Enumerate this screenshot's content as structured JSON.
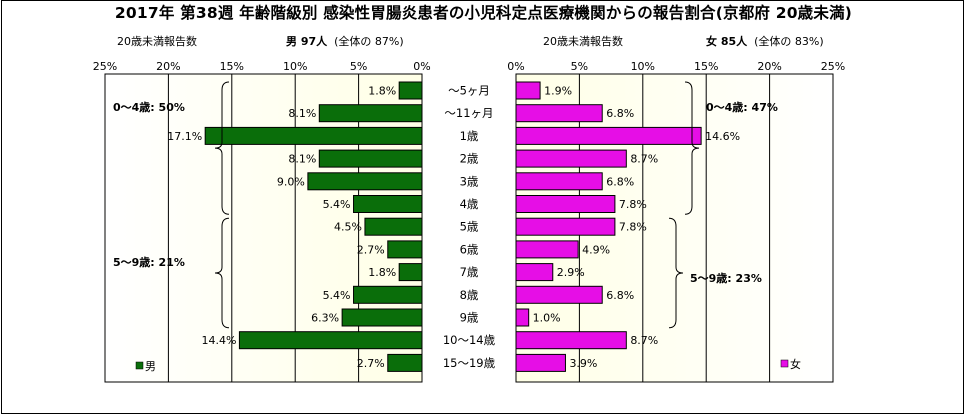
{
  "title": "2017年 第38週 年齢階級別 感染性胃腸炎患者の小児科定点医療機関からの報告割合(京都府 20歳未満)",
  "header": {
    "left_caption": "20歳未満報告数",
    "left_summary_bold": "男 97人",
    "left_summary_rest": "(全体の 87%)",
    "right_caption": "20歳未満報告数",
    "right_summary_bold": "女 85人",
    "right_summary_rest": "(全体の 83%)"
  },
  "colors": {
    "male": "#0a6e0a",
    "female": "#e60ee6",
    "plot_bg": "#ffffe6",
    "grid": "#000000"
  },
  "chart_data": {
    "type": "bar",
    "orientation": "horizontal-population-pyramid",
    "categories": [
      "～5ヶ月",
      "～11ヶ月",
      "1歳",
      "2歳",
      "3歳",
      "4歳",
      "5歳",
      "6歳",
      "7歳",
      "8歳",
      "9歳",
      "10～14歳",
      "15～19歳"
    ],
    "series": [
      {
        "name": "男",
        "values": [
          1.8,
          8.1,
          17.1,
          8.1,
          9.0,
          5.4,
          4.5,
          2.7,
          1.8,
          5.4,
          6.3,
          14.4,
          2.7
        ]
      },
      {
        "name": "女",
        "values": [
          1.9,
          6.8,
          14.6,
          8.7,
          6.8,
          7.8,
          7.8,
          4.9,
          2.9,
          6.8,
          1.0,
          8.7,
          3.9
        ]
      }
    ],
    "value_labels": {
      "male": [
        "1.8%",
        "8.1%",
        "17.1%",
        "8.1%",
        "9.0%",
        "5.4%",
        "4.5%",
        "2.7%",
        "1.8%",
        "5.4%",
        "6.3%",
        "14.4%",
        "2.7%"
      ],
      "female": [
        "1.9%",
        "6.8%",
        "14.6%",
        "8.7%",
        "6.8%",
        "7.8%",
        "7.8%",
        "4.9%",
        "2.9%",
        "6.8%",
        "1.0%",
        "8.7%",
        "3.9%"
      ]
    },
    "x_ticks": [
      "0%",
      "5%",
      "10%",
      "15%",
      "20%",
      "25%"
    ],
    "xlim": [
      0,
      25
    ],
    "grid": true,
    "legend": {
      "male": "男",
      "female": "女",
      "male_position": "bottom-left",
      "female_position": "bottom-right"
    },
    "annotations": {
      "male_0_4": "0～4歳: 50%",
      "male_5_9": "5～9歳: 21%",
      "female_0_4": "0～4歳: 47%",
      "female_5_9": "5～9歳: 23%"
    }
  }
}
